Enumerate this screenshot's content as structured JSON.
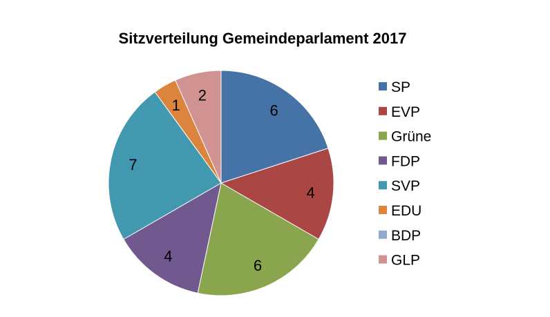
{
  "chart_data": {
    "type": "pie",
    "title": "Sitzverteilung Gemeindeparlament 2017",
    "categories": [
      "SP",
      "EVP",
      "Grüne",
      "FDP",
      "SVP",
      "EDU",
      "BDP",
      "GLP"
    ],
    "values": [
      6,
      4,
      6,
      4,
      7,
      1,
      0,
      2
    ],
    "colors": [
      "#4572A7",
      "#AA4643",
      "#89A54E",
      "#71588F",
      "#4198AF",
      "#DB843D",
      "#93A9CF",
      "#D19392"
    ],
    "legend": "right",
    "start_angle": "top, clockwise"
  }
}
